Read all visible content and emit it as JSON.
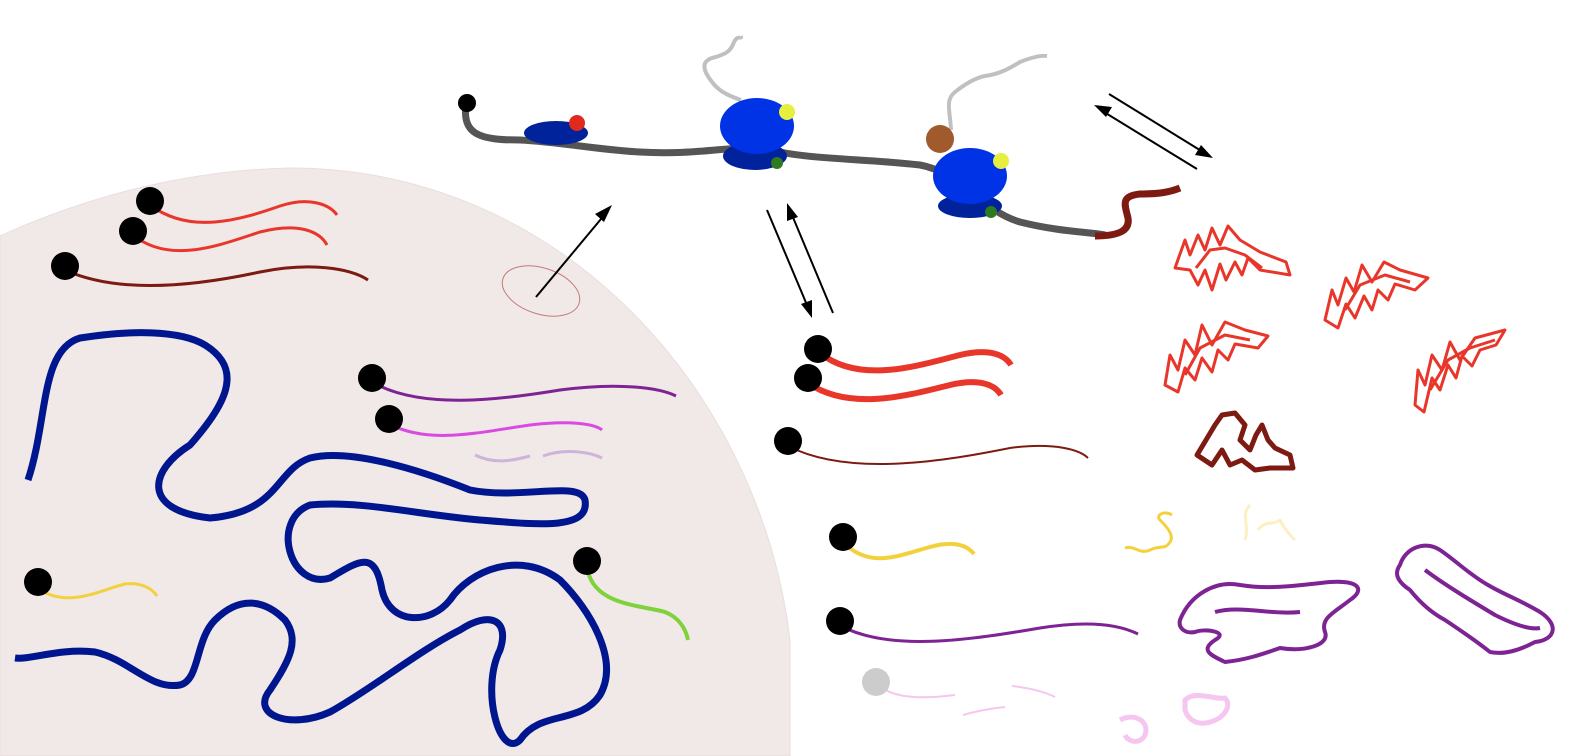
{
  "colors": {
    "background": "#ffffff",
    "nucleus": "#f1e8e8",
    "nucleus_edge": "#eadede",
    "chromatin": "#00168f",
    "mrna_cap": "#000000",
    "mrna_red": "#e8372a",
    "mrna_dark_red": "#7d1a12",
    "mrna_purple": "#7d2394",
    "mrna_magenta": "#d94be0",
    "mrna_faded_purple": "#cfb3d8",
    "mrna_yellow": "#f2d13c",
    "mrna_green": "#7ed23b",
    "faded_grey": "#cccccc",
    "faded_pink": "#f4c6f0",
    "faded_yellow": "#fbf0c4",
    "ribosome_large": "#0033e6",
    "ribosome_small": "#00229a",
    "ribosome_small_front": "#00229a",
    "mrna_backbone": "#555555",
    "peptide_chain": "#c0c0c0",
    "factor_red": "#e12a1e",
    "factor_yellow": "#e6ef3e",
    "factor_green": "#2e7a1e",
    "factor_brown": "#a05a2c",
    "pore": "#c47a7a",
    "arrow": "#000000",
    "protein_red": "#e8372a",
    "protein_dark_red": "#7d1a12",
    "protein_purple": "#7d2394"
  },
  "icons": [
    "nuclear-pore-icon",
    "ribosome-icon",
    "polysome-icon",
    "mrna-icon",
    "protein-aggregate-icon",
    "equilibrium-arrows-icon",
    "export-arrow-icon"
  ]
}
